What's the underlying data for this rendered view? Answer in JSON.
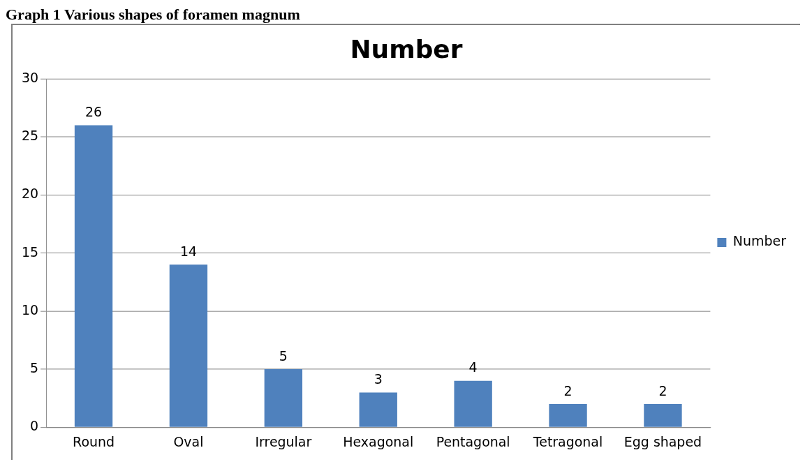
{
  "chart_data": {
    "type": "bar",
    "title": "Number",
    "annotations": [
      "Graph 1 Various shapes of foramen magnum"
    ],
    "categories": [
      "Round",
      "Oval",
      "Irregular",
      "Hexagonal",
      "Pentagonal",
      "Tetragonal",
      "Egg shaped"
    ],
    "series": [
      {
        "name": "Number",
        "color": "#4f81bd",
        "values": [
          26,
          14,
          5,
          3,
          4,
          2,
          2
        ]
      }
    ],
    "ylim": [
      0,
      30
    ],
    "yticks": [
      0,
      5,
      10,
      15,
      20,
      25,
      30
    ],
    "grid": "y",
    "legend": "right",
    "data_labels": true
  }
}
